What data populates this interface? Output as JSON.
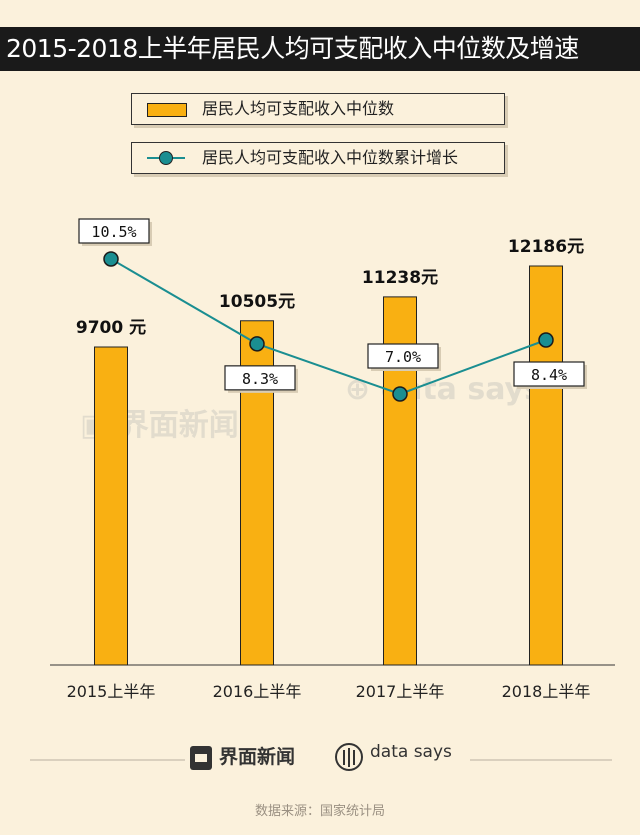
{
  "title": "2015-2018上半年居民人均可支配收入中位数及增速",
  "legend": {
    "bar": "居民人均可支配收入中位数",
    "line": "居民人均可支配收入中位数累计增长"
  },
  "watermark": {
    "brand": "界面新闻",
    "datasays": "data says"
  },
  "footer": {
    "brand": "界面新闻",
    "datasays": "data says",
    "source": "数据来源：国家统计局"
  },
  "colors": {
    "bar": "#f9b012",
    "line": "#1a8e91",
    "title_bg": "#1a1a1a",
    "background": "#fbf1dc"
  },
  "chart_data": {
    "type": "bar",
    "categories": [
      "2015上半年",
      "2016上半年",
      "2017上半年",
      "2018上半年"
    ],
    "bar_series": {
      "name": "居民人均可支配收入中位数",
      "values": [
        9700,
        10505,
        11238,
        12186
      ],
      "labels": [
        "9700 元",
        "10505元",
        "11238元",
        "12186元"
      ]
    },
    "line_series": {
      "name": "居民人均可支配收入中位数累计增长",
      "values": [
        10.5,
        8.3,
        7.0,
        8.4
      ],
      "labels": [
        "10.5%",
        "8.3%",
        "7.0%",
        "8.4%"
      ]
    },
    "bar_ylim": [
      0,
      13000
    ],
    "line_ylim": [
      0,
      14
    ],
    "grid": false,
    "legend_placement": "top"
  }
}
